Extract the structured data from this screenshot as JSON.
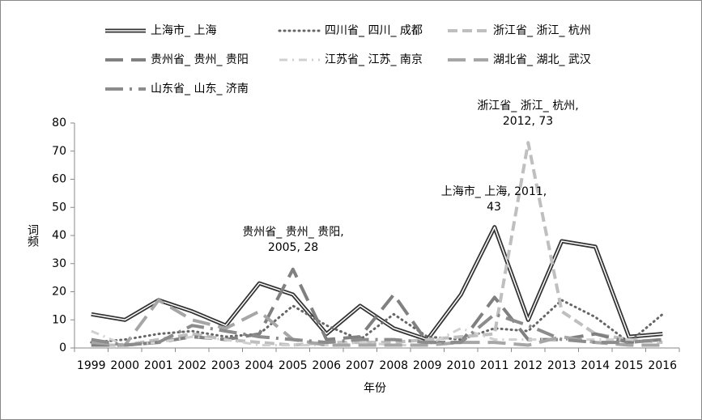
{
  "chart_data": {
    "type": "line",
    "y_label": "词频",
    "x_label": "年份",
    "categories": [
      "1999",
      "2000",
      "2001",
      "2002",
      "2003",
      "2004",
      "2005",
      "2006",
      "2007",
      "2008",
      "2009",
      "2010",
      "2011",
      "2012",
      "2013",
      "2014",
      "2015",
      "2016"
    ],
    "ylim": [
      0,
      80
    ],
    "yticks": [
      0,
      10,
      20,
      30,
      40,
      50,
      60,
      70,
      80
    ],
    "series": [
      {
        "name": "上海市_ 上海",
        "color": "#333333",
        "line_style": "double",
        "values": [
          12,
          10,
          17,
          13,
          8,
          23,
          19,
          5,
          15,
          7,
          3,
          19,
          43,
          10,
          38,
          36,
          4,
          5
        ]
      },
      {
        "name": "四川省_ 四川_ 成都",
        "color": "#666666",
        "line_style": "dotted",
        "values": [
          2,
          3,
          5,
          6,
          4,
          5,
          15,
          8,
          3,
          12,
          4,
          3,
          7,
          6,
          17,
          11,
          2,
          12
        ]
      },
      {
        "name": "浙江省_ 浙江_ 杭州",
        "color": "#bfbfbf",
        "line_style": "dashed",
        "values": [
          1,
          1,
          3,
          5,
          3,
          2,
          1,
          2,
          2,
          2,
          3,
          4,
          5,
          73,
          13,
          5,
          3,
          2
        ]
      },
      {
        "name": "贵州省_ 贵州_ 贵阳",
        "color": "#808080",
        "line_style": "long-dash",
        "values": [
          1,
          1,
          2,
          4,
          3,
          5,
          28,
          3,
          4,
          19,
          2,
          2,
          18,
          3,
          3,
          5,
          2,
          3
        ]
      },
      {
        "name": "江苏省_ 江苏_ 南京",
        "color": "#d0d0d0",
        "line_style": "dash-dot",
        "values": [
          6,
          1,
          2,
          4,
          3,
          1,
          1,
          1,
          2,
          1,
          1,
          7,
          3,
          3,
          3,
          3,
          3,
          2
        ]
      },
      {
        "name": "湖北省_ 湖北_ 武汉",
        "color": "#a6a6a6",
        "line_style": "long-dash",
        "values": [
          2,
          1,
          17,
          10,
          7,
          13,
          3,
          1,
          1,
          1,
          1,
          2,
          2,
          1,
          4,
          2,
          1,
          1
        ]
      },
      {
        "name": "山东省_ 山东_ 济南",
        "color": "#8c8c8c",
        "line_style": "long-dash-dot",
        "values": [
          3,
          1,
          2,
          8,
          6,
          4,
          3,
          2,
          3,
          3,
          2,
          2,
          12,
          8,
          3,
          2,
          2,
          3
        ]
      }
    ],
    "annotations": [
      {
        "lines": [
          "浙江省_ 浙江_ 杭州,",
          "2012, 73"
        ]
      },
      {
        "lines": [
          "上海市_ 上海, 2011,",
          "43"
        ]
      },
      {
        "lines": [
          "贵州省_ 贵州_ 贵阳,",
          "2005, 28"
        ]
      }
    ]
  }
}
